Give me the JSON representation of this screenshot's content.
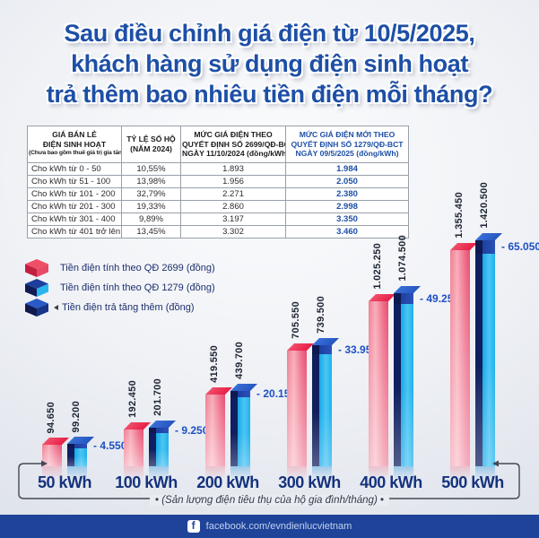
{
  "title": {
    "lines": [
      "Sau điều chỉnh giá điện từ 10/5/2025,",
      "khách hàng sử dụng điện sinh hoạt",
      "trả thêm bao nhiêu tiền điện mỗi tháng?"
    ]
  },
  "table": {
    "headers": [
      {
        "lines": [
          "GIÁ BÁN LẺ",
          "ĐIỆN SINH HOẠT"
        ],
        "sub": "(Chưa bao gồm thuế giá trị gia tăng)"
      },
      {
        "lines": [
          "TỶ LỆ SỐ HỘ",
          "(NĂM 2024)"
        ]
      },
      {
        "lines": [
          "MỨC GIÁ ĐIỆN THEO",
          "QUYẾT ĐỊNH SỐ 2699/QĐ-BCT",
          "NGÀY 11/10/2024 (đồng/kWh)"
        ]
      },
      {
        "lines": [
          "MỨC GIÁ ĐIỆN MỚI THEO",
          "QUYẾT ĐỊNH SỐ 1279/QĐ-BCT",
          "NGÀY 09/5/2025 (đồng/kWh)"
        ]
      }
    ],
    "rows": [
      [
        "Cho kWh từ 0 - 50",
        "10,55%",
        "1.893",
        "1.984"
      ],
      [
        "Cho kWh từ 51 - 100",
        "13,98%",
        "1.956",
        "2.050"
      ],
      [
        "Cho kWh từ 101 - 200",
        "32,79%",
        "2.271",
        "2.380"
      ],
      [
        "Cho kWh từ 201 - 300",
        "19,33%",
        "2.860",
        "2.998"
      ],
      [
        "Cho kWh từ 301 - 400",
        "9,89%",
        "3.197",
        "3.350"
      ],
      [
        "Cho kWh từ 401 trở lên",
        "13,45%",
        "3.302",
        "3.460"
      ]
    ]
  },
  "legend": [
    {
      "label": "Tiền điện tính theo QĐ 2699 (đồng)",
      "cube_colors": {
        "top": "#ef4f65",
        "left": "#c21f40",
        "right": "#e84a66"
      }
    },
    {
      "label": "Tiền điện tính theo QĐ 1279 (đồng)",
      "cube_colors": {
        "top": "#1c3f9e",
        "left": "#0f1c55",
        "right": "#28b6ee"
      }
    },
    {
      "label": "Tiền điện trả tăng thêm (đồng)",
      "cube_colors": {
        "top": "#2a5ac6",
        "left": "#0e1a4e",
        "right": "#173687"
      }
    }
  ],
  "chart_data": {
    "type": "bar",
    "categories": [
      "50 kWh",
      "100 kWh",
      "200 kWh",
      "300 kWh",
      "400 kWh",
      "500 kWh"
    ],
    "series": [
      {
        "name": "Tiền điện tính theo QĐ 2699 (đồng)",
        "values": [
          94650,
          192450,
          419550,
          705550,
          1025250,
          1355450
        ],
        "labels": [
          "94.650",
          "192.450",
          "419.550",
          "705.550",
          "1.025.250",
          "1.355.450"
        ]
      },
      {
        "name": "Tiền điện tính theo QĐ 1279 (đồng)",
        "values": [
          99200,
          201700,
          439700,
          739500,
          1074500,
          1420500
        ],
        "labels": [
          "99.200",
          "201.700",
          "439.700",
          "739.500",
          "1.074.500",
          "1.420.500"
        ]
      },
      {
        "name": "Tiền điện trả tăng thêm (đồng)",
        "values": [
          4550,
          9250,
          20150,
          33950,
          49250,
          65050
        ],
        "labels": [
          "4.550",
          "9.250",
          "20.150",
          "33.950",
          "49.250",
          "65.050"
        ]
      }
    ],
    "increase_prefix": "- ",
    "unit": "đồng",
    "axis_caption": "(Sản lượng điện tiêu thụ của hộ gia đình/tháng)",
    "ylim": [
      0,
      1420500
    ],
    "grid": false,
    "legend_position": "upper-left"
  },
  "footer": {
    "facebook_letter": "f",
    "facebook_url": "facebook.com/evndienlucvietnam"
  },
  "colors": {
    "title": "#1d4fa6",
    "old_bar": "#ee5f7f",
    "new_bar": "#23b4ee",
    "increase_cap": "#14307f",
    "increase_label": "#1e50c2",
    "table_highlight": "#1d4fa6",
    "footer_bg": "#1e4399",
    "axis_line": "#434a54"
  }
}
